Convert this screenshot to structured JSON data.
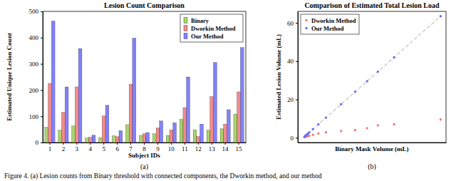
{
  "caption": "Figure 4. (a) Lesion counts from Binary threshold with connected components, the Dworkin method, and our method",
  "chart_data": [
    {
      "type": "bar",
      "title": "Lesion Count Comparison",
      "x_label": "Subject IDs",
      "y_label": "Estimated Unique Lesion Count",
      "annotation": "(a)",
      "categories": [
        1,
        2,
        3,
        4,
        5,
        6,
        7,
        8,
        9,
        10,
        11,
        12,
        13,
        14,
        15
      ],
      "series": [
        {
          "name": "Binary",
          "color": "#a8d46c",
          "values": [
            58,
            47,
            63,
            17,
            18,
            25,
            68,
            27,
            33,
            27,
            88,
            48,
            47,
            52,
            108
          ]
        },
        {
          "name": "Dworkin Method",
          "color": "#f58a8a",
          "values": [
            225,
            115,
            212,
            20,
            101,
            22,
            222,
            33,
            55,
            48,
            133,
            23,
            175,
            70,
            193
          ]
        },
        {
          "name": "Our Method",
          "color": "#8282ff",
          "values": [
            463,
            212,
            358,
            28,
            142,
            45,
            398,
            38,
            82,
            75,
            250,
            70,
            305,
            125,
            362
          ]
        }
      ],
      "ylim": [
        0,
        500
      ],
      "yticks": [
        0,
        100,
        200,
        300,
        400,
        500
      ],
      "grid": false,
      "legend": "top-right"
    },
    {
      "type": "scatter",
      "title": "Comparison of Estimated Total Lesion Load",
      "x_label": "Binary Mask Volume (mL)",
      "y_label": "Estimated Lesion Volume (mL)",
      "annotation": "(b)",
      "series": [
        {
          "name": "Dworkin Method",
          "type": "scatter",
          "marker": "circle",
          "color": "#f07878",
          "x": [
            0.6,
            1.0,
            1.3,
            1.8,
            2.2,
            2.8,
            4.5,
            7.0,
            10.5,
            17.5,
            24.0,
            29.5,
            34.5,
            42.0,
            63.5
          ],
          "values": [
            0.3,
            0.5,
            0.6,
            0.8,
            0.9,
            1.0,
            1.5,
            2.2,
            2.8,
            3.5,
            4.0,
            5.0,
            6.5,
            7.0,
            9.5
          ]
        },
        {
          "name": "Our Method",
          "type": "scatter",
          "marker": "circle",
          "color": "#6b6bff",
          "x": [
            0.6,
            1.0,
            1.3,
            1.8,
            2.2,
            2.8,
            4.5,
            7.0,
            10.5,
            17.5,
            24.0,
            29.5,
            34.5,
            42.0,
            63.5
          ],
          "values": [
            0.6,
            1.0,
            1.3,
            1.8,
            2.2,
            2.8,
            4.5,
            7.0,
            10.5,
            17.5,
            24.0,
            29.5,
            34.5,
            42.0,
            63.5
          ]
        },
        {
          "type": "line",
          "line_style": "dashed",
          "color": "#a0a0a0",
          "x": [
            0,
            63.5
          ],
          "values": [
            0,
            63.5
          ]
        }
      ],
      "xlim": [
        -2.5,
        66
      ],
      "ylim": [
        -2.5,
        66
      ],
      "yticks": [
        0,
        20,
        40,
        60
      ],
      "tick_labels": "y",
      "grid": false,
      "legend": "top-left"
    }
  ]
}
